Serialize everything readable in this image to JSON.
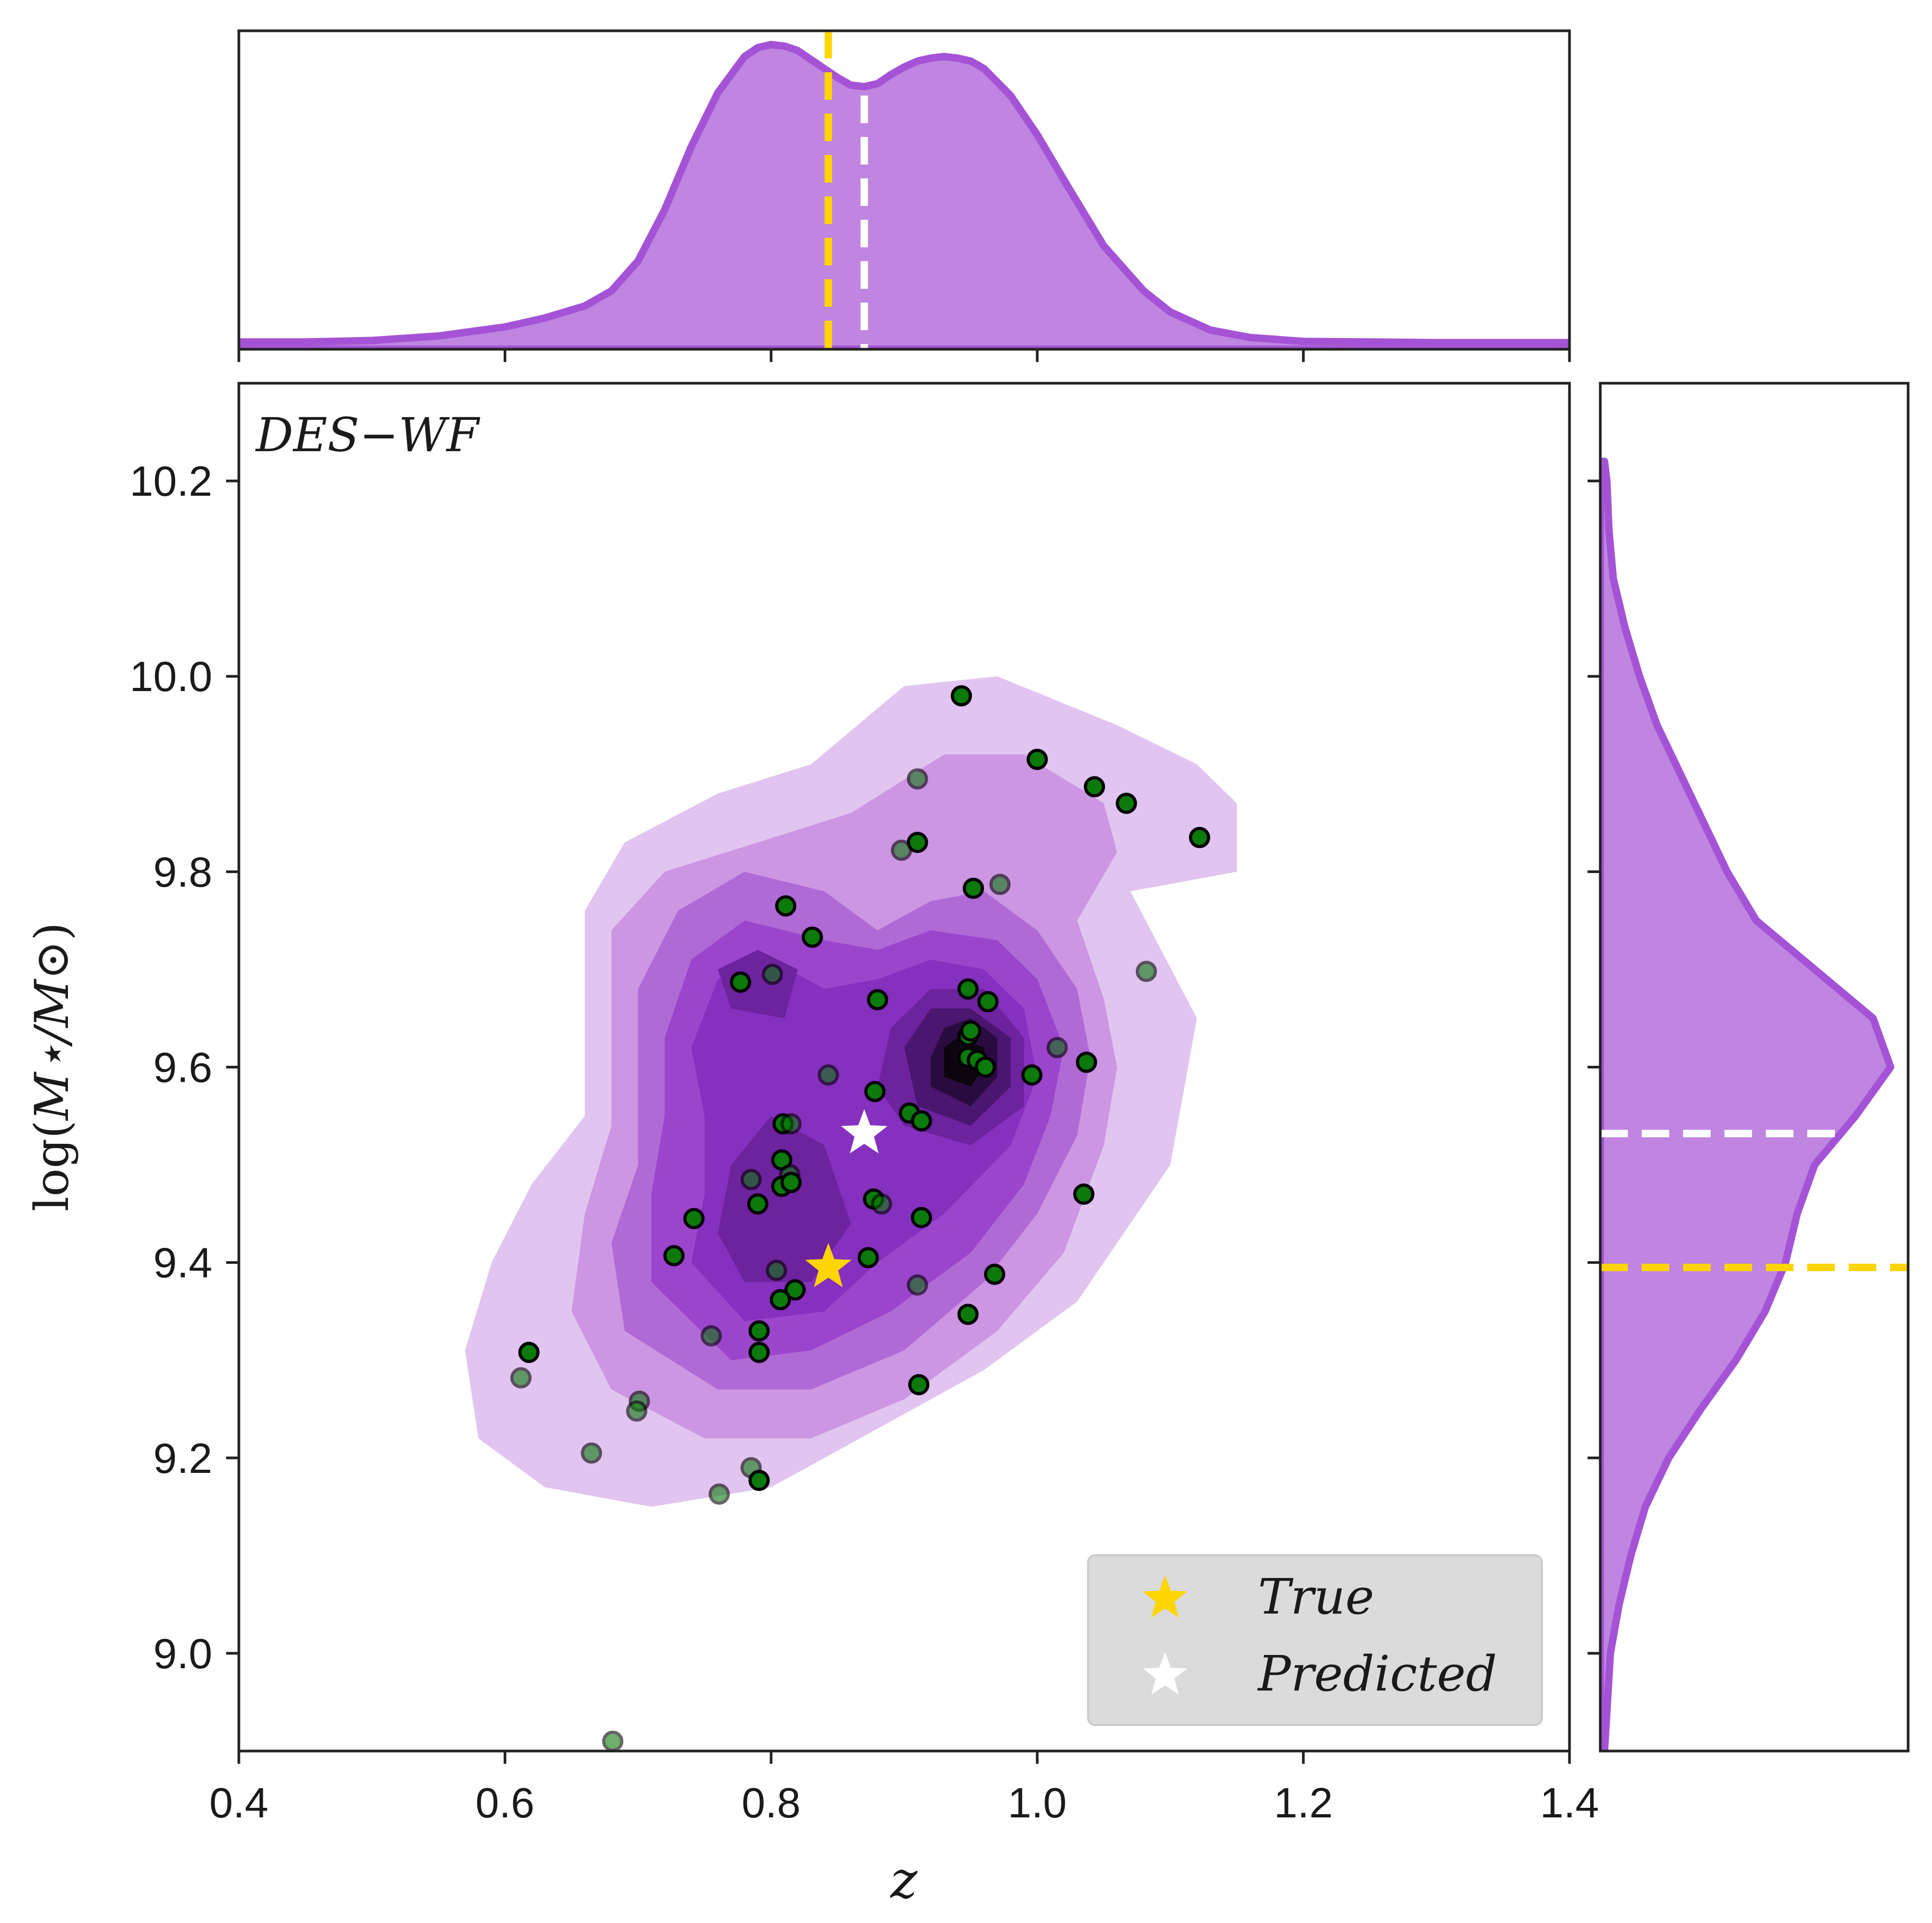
{
  "chart_data": {
    "type": "scatter",
    "panel_label": "DES−WF",
    "xlabel": "z",
    "ylabel_prefix": "log(",
    "ylabel_core": "M⋆/M⊙",
    "ylabel_suffix": ")",
    "xlim": [
      0.4,
      1.4
    ],
    "ylim": [
      8.9,
      10.3
    ],
    "x_ticks": [
      0.4,
      0.6,
      0.8,
      1.0,
      1.2,
      1.4
    ],
    "x_tick_labels": [
      "0.4",
      "0.6",
      "0.8",
      "1.0",
      "1.2",
      "1.4"
    ],
    "y_ticks": [
      9.0,
      9.2,
      9.4,
      9.6,
      9.8,
      10.0,
      10.2
    ],
    "y_tick_labels": [
      "9.0",
      "9.2",
      "9.4",
      "9.6",
      "9.8",
      "10.0",
      "10.2"
    ],
    "true_point": {
      "name": "True",
      "z": 0.843,
      "logM": 9.395
    },
    "predicted_point": {
      "name": "Predicted",
      "z": 0.87,
      "logM": 9.532
    },
    "legend": {
      "location": "lower-right",
      "entries": [
        "True",
        "Predicted"
      ]
    },
    "samples": [
      {
        "z": 0.943,
        "logM": 9.98,
        "a": 1
      },
      {
        "z": 1.0,
        "logM": 9.915,
        "a": 1
      },
      {
        "z": 1.043,
        "logM": 9.887,
        "a": 1
      },
      {
        "z": 1.067,
        "logM": 9.87,
        "a": 1
      },
      {
        "z": 0.91,
        "logM": 9.895,
        "a": 0.6
      },
      {
        "z": 1.122,
        "logM": 9.835,
        "a": 1
      },
      {
        "z": 0.91,
        "logM": 9.83,
        "a": 1
      },
      {
        "z": 0.898,
        "logM": 9.822,
        "a": 0.6
      },
      {
        "z": 0.952,
        "logM": 9.783,
        "a": 1
      },
      {
        "z": 0.972,
        "logM": 9.787,
        "a": 0.6
      },
      {
        "z": 0.811,
        "logM": 9.765,
        "a": 1
      },
      {
        "z": 0.831,
        "logM": 9.733,
        "a": 1
      },
      {
        "z": 1.082,
        "logM": 9.698,
        "a": 0.6
      },
      {
        "z": 0.801,
        "logM": 9.695,
        "a": 0.6
      },
      {
        "z": 0.777,
        "logM": 9.687,
        "a": 1
      },
      {
        "z": 0.948,
        "logM": 9.68,
        "a": 1
      },
      {
        "z": 0.88,
        "logM": 9.669,
        "a": 1
      },
      {
        "z": 0.963,
        "logM": 9.667,
        "a": 1
      },
      {
        "z": 0.948,
        "logM": 9.632,
        "a": 1
      },
      {
        "z": 0.95,
        "logM": 9.637,
        "a": 1
      },
      {
        "z": 1.015,
        "logM": 9.62,
        "a": 0.6
      },
      {
        "z": 0.948,
        "logM": 9.61,
        "a": 1
      },
      {
        "z": 0.955,
        "logM": 9.607,
        "a": 1
      },
      {
        "z": 1.037,
        "logM": 9.605,
        "a": 1
      },
      {
        "z": 0.961,
        "logM": 9.6,
        "a": 1
      },
      {
        "z": 0.996,
        "logM": 9.592,
        "a": 1
      },
      {
        "z": 0.843,
        "logM": 9.592,
        "a": 0.6
      },
      {
        "z": 0.878,
        "logM": 9.575,
        "a": 1
      },
      {
        "z": 0.904,
        "logM": 9.553,
        "a": 1
      },
      {
        "z": 0.913,
        "logM": 9.545,
        "a": 1
      },
      {
        "z": 0.809,
        "logM": 9.542,
        "a": 1
      },
      {
        "z": 0.815,
        "logM": 9.542,
        "a": 0.6
      },
      {
        "z": 0.808,
        "logM": 9.505,
        "a": 1
      },
      {
        "z": 0.814,
        "logM": 9.49,
        "a": 0.6
      },
      {
        "z": 0.785,
        "logM": 9.485,
        "a": 0.6
      },
      {
        "z": 0.808,
        "logM": 9.478,
        "a": 1
      },
      {
        "z": 0.815,
        "logM": 9.482,
        "a": 1
      },
      {
        "z": 0.877,
        "logM": 9.465,
        "a": 1
      },
      {
        "z": 0.883,
        "logM": 9.46,
        "a": 0.6
      },
      {
        "z": 0.79,
        "logM": 9.46,
        "a": 1
      },
      {
        "z": 1.035,
        "logM": 9.47,
        "a": 1
      },
      {
        "z": 0.742,
        "logM": 9.445,
        "a": 1
      },
      {
        "z": 0.913,
        "logM": 9.446,
        "a": 1
      },
      {
        "z": 0.727,
        "logM": 9.407,
        "a": 1
      },
      {
        "z": 0.873,
        "logM": 9.405,
        "a": 1
      },
      {
        "z": 0.804,
        "logM": 9.392,
        "a": 0.6
      },
      {
        "z": 0.968,
        "logM": 9.388,
        "a": 1
      },
      {
        "z": 0.91,
        "logM": 9.377,
        "a": 0.6
      },
      {
        "z": 0.818,
        "logM": 9.372,
        "a": 1
      },
      {
        "z": 0.807,
        "logM": 9.362,
        "a": 1
      },
      {
        "z": 0.948,
        "logM": 9.347,
        "a": 1
      },
      {
        "z": 0.791,
        "logM": 9.33,
        "a": 1
      },
      {
        "z": 0.755,
        "logM": 9.325,
        "a": 0.6
      },
      {
        "z": 0.618,
        "logM": 9.308,
        "a": 1
      },
      {
        "z": 0.791,
        "logM": 9.308,
        "a": 1
      },
      {
        "z": 0.612,
        "logM": 9.282,
        "a": 0.6
      },
      {
        "z": 0.911,
        "logM": 9.275,
        "a": 1
      },
      {
        "z": 0.701,
        "logM": 9.258,
        "a": 0.6
      },
      {
        "z": 0.699,
        "logM": 9.248,
        "a": 0.6
      },
      {
        "z": 0.665,
        "logM": 9.205,
        "a": 0.6
      },
      {
        "z": 0.785,
        "logM": 9.19,
        "a": 0.6
      },
      {
        "z": 0.791,
        "logM": 9.177,
        "a": 1
      },
      {
        "z": 0.761,
        "logM": 9.163,
        "a": 0.6
      },
      {
        "z": 0.681,
        "logM": 8.91,
        "a": 0.6
      }
    ],
    "density_levels": [
      {
        "level": 1,
        "color": "#e1c4f0",
        "ring": [
          [
            0.71,
            9.15
          ],
          [
            0.8,
            9.17
          ],
          [
            0.88,
            9.23
          ],
          [
            0.96,
            9.29
          ],
          [
            1.03,
            9.36
          ],
          [
            1.1,
            9.5
          ],
          [
            1.12,
            9.65
          ],
          [
            1.07,
            9.78
          ],
          [
            1.15,
            9.8
          ],
          [
            1.15,
            9.87
          ],
          [
            1.12,
            9.91
          ],
          [
            1.06,
            9.95
          ],
          [
            0.97,
            10.0
          ],
          [
            0.9,
            9.99
          ],
          [
            0.83,
            9.91
          ],
          [
            0.76,
            9.88
          ],
          [
            0.69,
            9.83
          ],
          [
            0.66,
            9.76
          ],
          [
            0.66,
            9.66
          ],
          [
            0.66,
            9.55
          ],
          [
            0.62,
            9.48
          ],
          [
            0.59,
            9.4
          ],
          [
            0.57,
            9.31
          ],
          [
            0.58,
            9.22
          ],
          [
            0.63,
            9.17
          ]
        ]
      },
      {
        "level": 2,
        "color": "#cc96e3",
        "ring": [
          [
            0.75,
            9.22
          ],
          [
            0.83,
            9.22
          ],
          [
            0.9,
            9.26
          ],
          [
            0.97,
            9.33
          ],
          [
            1.02,
            9.41
          ],
          [
            1.05,
            9.52
          ],
          [
            1.06,
            9.6
          ],
          [
            1.05,
            9.67
          ],
          [
            1.03,
            9.75
          ],
          [
            1.06,
            9.82
          ],
          [
            1.05,
            9.87
          ],
          [
            0.99,
            9.92
          ],
          [
            0.93,
            9.92
          ],
          [
            0.86,
            9.86
          ],
          [
            0.79,
            9.83
          ],
          [
            0.72,
            9.8
          ],
          [
            0.68,
            9.74
          ],
          [
            0.68,
            9.64
          ],
          [
            0.68,
            9.54
          ],
          [
            0.66,
            9.45
          ],
          [
            0.65,
            9.35
          ],
          [
            0.68,
            9.27
          ]
        ]
      },
      {
        "level": 3,
        "color": "#b06ad6",
        "ring": [
          [
            0.76,
            9.27
          ],
          [
            0.83,
            9.27
          ],
          [
            0.9,
            9.31
          ],
          [
            0.96,
            9.38
          ],
          [
            1.0,
            9.45
          ],
          [
            1.03,
            9.53
          ],
          [
            1.04,
            9.61
          ],
          [
            1.03,
            9.68
          ],
          [
            1.0,
            9.74
          ],
          [
            0.96,
            9.78
          ],
          [
            0.92,
            9.77
          ],
          [
            0.88,
            9.74
          ],
          [
            0.84,
            9.78
          ],
          [
            0.78,
            9.8
          ],
          [
            0.73,
            9.76
          ],
          [
            0.7,
            9.68
          ],
          [
            0.7,
            9.58
          ],
          [
            0.7,
            9.5
          ],
          [
            0.68,
            9.42
          ],
          [
            0.69,
            9.33
          ]
        ]
      },
      {
        "level": 4,
        "color": "#9b45cc",
        "ring": [
          [
            0.77,
            9.3
          ],
          [
            0.83,
            9.31
          ],
          [
            0.89,
            9.35
          ],
          [
            0.95,
            9.41
          ],
          [
            0.99,
            9.48
          ],
          [
            1.01,
            9.55
          ],
          [
            1.02,
            9.62
          ],
          [
            1.0,
            9.69
          ],
          [
            0.97,
            9.73
          ],
          [
            0.92,
            9.74
          ],
          [
            0.88,
            9.72
          ],
          [
            0.84,
            9.73
          ],
          [
            0.78,
            9.75
          ],
          [
            0.74,
            9.71
          ],
          [
            0.72,
            9.63
          ],
          [
            0.72,
            9.55
          ],
          [
            0.71,
            9.47
          ],
          [
            0.71,
            9.38
          ]
        ]
      },
      {
        "level": 5,
        "color": "#8630bf",
        "ring": [
          [
            0.78,
            9.34
          ],
          [
            0.84,
            9.35
          ],
          [
            0.88,
            9.4
          ],
          [
            0.93,
            9.45
          ],
          [
            0.98,
            9.52
          ],
          [
            1.0,
            9.59
          ],
          [
            0.99,
            9.66
          ],
          [
            0.96,
            9.7
          ],
          [
            0.92,
            9.71
          ],
          [
            0.88,
            9.69
          ],
          [
            0.84,
            9.68
          ],
          [
            0.8,
            9.71
          ],
          [
            0.76,
            9.69
          ],
          [
            0.74,
            9.62
          ],
          [
            0.75,
            9.55
          ],
          [
            0.75,
            9.47
          ],
          [
            0.74,
            9.4
          ]
        ]
      },
      {
        "level": 6,
        "color": "#6d229e",
        "ring": [
          [
            0.78,
            9.38
          ],
          [
            0.83,
            9.38
          ],
          [
            0.86,
            9.44
          ],
          [
            0.84,
            9.52
          ],
          [
            0.8,
            9.55
          ],
          [
            0.77,
            9.5
          ],
          [
            0.76,
            9.43
          ]
        ]
      },
      {
        "level": 6,
        "color": "#6d229e",
        "ring": [
          [
            0.9,
            9.54
          ],
          [
            0.95,
            9.52
          ],
          [
            0.99,
            9.56
          ],
          [
            0.99,
            9.63
          ],
          [
            0.96,
            9.68
          ],
          [
            0.92,
            9.68
          ],
          [
            0.89,
            9.64
          ],
          [
            0.88,
            9.58
          ]
        ]
      },
      {
        "level": 6,
        "color": "#6d229e",
        "ring": [
          [
            0.77,
            9.66
          ],
          [
            0.81,
            9.65
          ],
          [
            0.82,
            9.7
          ],
          [
            0.79,
            9.72
          ],
          [
            0.76,
            9.7
          ]
        ]
      },
      {
        "level": 7,
        "color": "#4a1670",
        "ring": [
          [
            0.91,
            9.56
          ],
          [
            0.95,
            9.54
          ],
          [
            0.98,
            9.58
          ],
          [
            0.98,
            9.63
          ],
          [
            0.95,
            9.66
          ],
          [
            0.92,
            9.66
          ],
          [
            0.9,
            9.62
          ]
        ]
      },
      {
        "level": 8,
        "color": "#2a0b3f",
        "ring": [
          [
            0.92,
            9.58
          ],
          [
            0.95,
            9.56
          ],
          [
            0.97,
            9.59
          ],
          [
            0.97,
            9.63
          ],
          [
            0.95,
            9.65
          ],
          [
            0.93,
            9.64
          ],
          [
            0.92,
            9.61
          ]
        ]
      },
      {
        "level": 9,
        "color": "#0e0410",
        "ring": [
          [
            0.93,
            9.59
          ],
          [
            0.95,
            9.58
          ],
          [
            0.96,
            9.6
          ],
          [
            0.96,
            9.62
          ],
          [
            0.94,
            9.63
          ],
          [
            0.93,
            9.62
          ]
        ]
      }
    ],
    "marginal_z": {
      "x": [
        0.4,
        0.45,
        0.5,
        0.55,
        0.6,
        0.63,
        0.66,
        0.68,
        0.7,
        0.72,
        0.74,
        0.76,
        0.78,
        0.79,
        0.8,
        0.81,
        0.82,
        0.83,
        0.84,
        0.85,
        0.86,
        0.87,
        0.88,
        0.89,
        0.9,
        0.91,
        0.92,
        0.93,
        0.94,
        0.95,
        0.96,
        0.98,
        1.0,
        1.02,
        1.05,
        1.08,
        1.1,
        1.13,
        1.16,
        1.2,
        1.25,
        1.3,
        1.35,
        1.4
      ],
      "density": [
        0.01,
        0.01,
        0.015,
        0.03,
        0.06,
        0.09,
        0.13,
        0.18,
        0.28,
        0.45,
        0.66,
        0.84,
        0.96,
        0.99,
        1.0,
        0.995,
        0.98,
        0.95,
        0.92,
        0.89,
        0.865,
        0.86,
        0.87,
        0.9,
        0.925,
        0.945,
        0.955,
        0.96,
        0.955,
        0.945,
        0.92,
        0.83,
        0.7,
        0.55,
        0.33,
        0.18,
        0.11,
        0.05,
        0.025,
        0.012,
        0.01,
        0.008,
        0.008,
        0.008
      ]
    },
    "marginal_logM": {
      "y": [
        8.9,
        9.0,
        9.05,
        9.1,
        9.15,
        9.2,
        9.25,
        9.3,
        9.35,
        9.4,
        9.45,
        9.5,
        9.55,
        9.6,
        9.65,
        9.7,
        9.75,
        9.8,
        9.85,
        9.9,
        9.95,
        10.0,
        10.05,
        10.1,
        10.15,
        10.2,
        10.22
      ],
      "density": [
        0.0,
        0.02,
        0.05,
        0.09,
        0.14,
        0.22,
        0.33,
        0.45,
        0.55,
        0.62,
        0.66,
        0.72,
        0.86,
        0.98,
        0.92,
        0.72,
        0.52,
        0.42,
        0.34,
        0.26,
        0.18,
        0.12,
        0.07,
        0.03,
        0.015,
        0.008,
        0.0
      ]
    },
    "colors": {
      "kde": "#bf85e0",
      "kde_edge": "#a553d6",
      "true": "#ffd500",
      "predicted": "#ffffff",
      "point": "#0b7a0b",
      "legend_bg": "#d9d9d9"
    }
  }
}
